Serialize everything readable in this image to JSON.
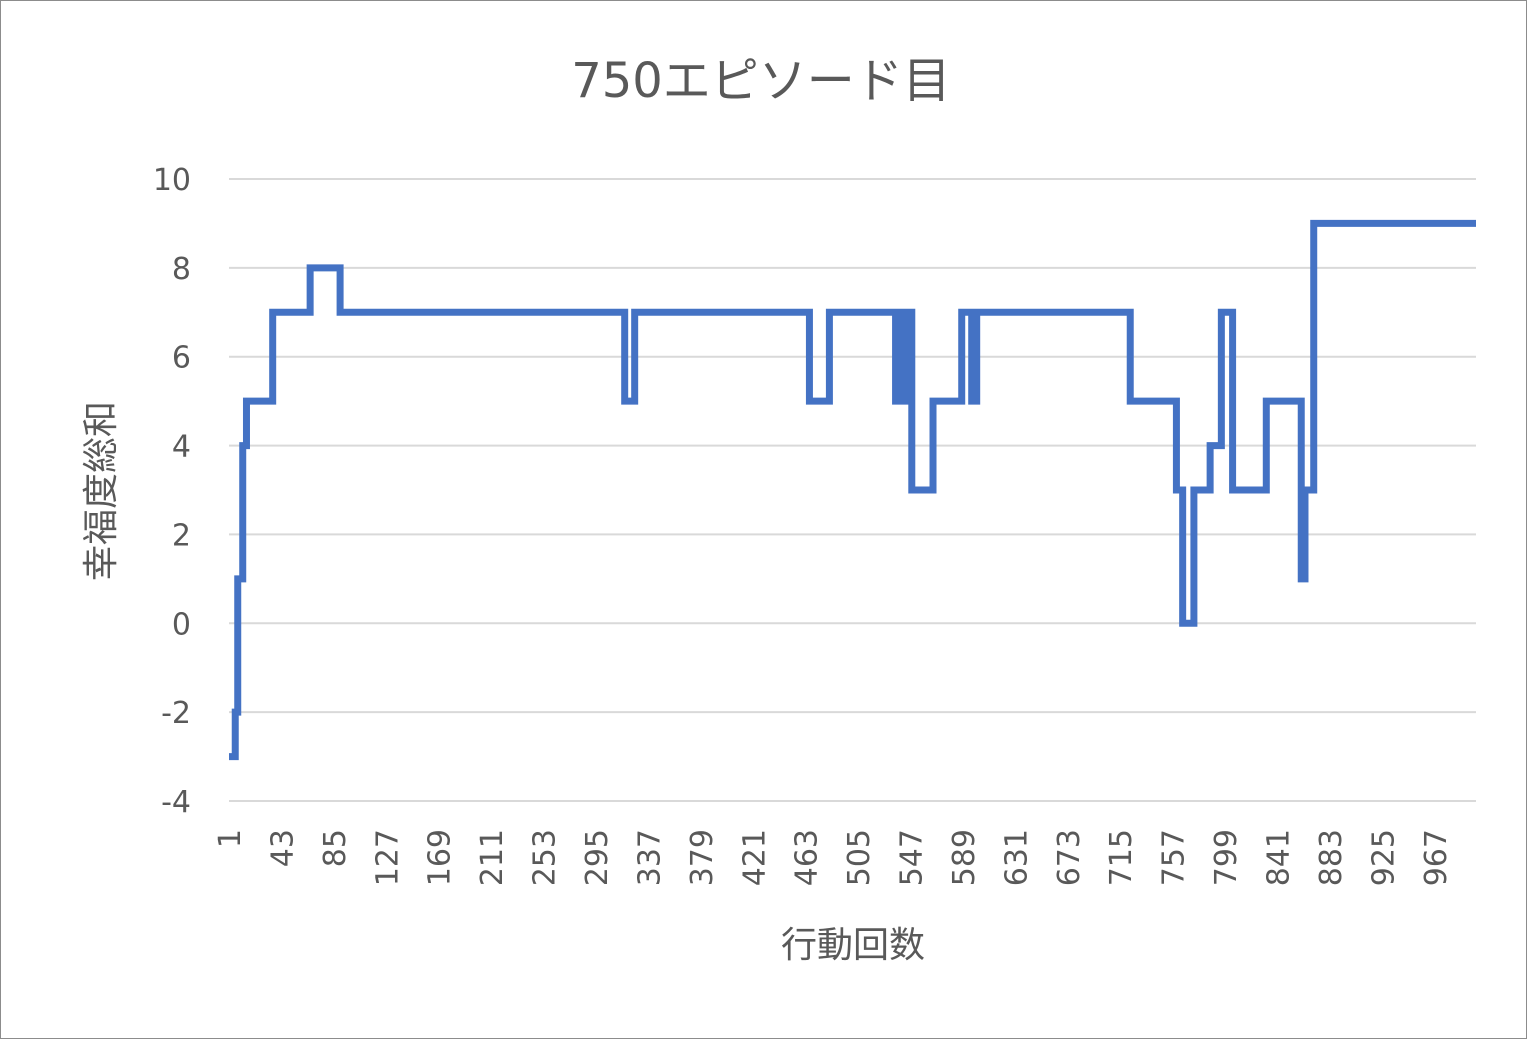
{
  "chart_data": {
    "type": "line",
    "title": "750エピソード目",
    "xlabel": "行動回数",
    "ylabel": "幸福度総和",
    "ylim": [
      -4,
      10
    ],
    "yticks": [
      -4,
      -2,
      0,
      2,
      4,
      6,
      8,
      10
    ],
    "xlim": [
      1,
      1000
    ],
    "xtick_labels": [
      "1",
      "43",
      "85",
      "127",
      "169",
      "211",
      "253",
      "295",
      "337",
      "379",
      "421",
      "463",
      "505",
      "547",
      "589",
      "631",
      "673",
      "715",
      "757",
      "799",
      "841",
      "883",
      "925",
      "967"
    ],
    "grid": true,
    "legend": "none",
    "line_color": "#4472c4",
    "series": [
      {
        "values_step": [
          [
            1,
            -3
          ],
          [
            6,
            -2
          ],
          [
            8,
            1
          ],
          [
            12,
            4
          ],
          [
            15,
            5
          ],
          [
            36,
            7
          ],
          [
            66,
            8
          ],
          [
            90,
            7
          ],
          [
            318,
            5
          ],
          [
            326,
            7
          ],
          [
            466,
            5
          ],
          [
            482,
            7
          ],
          [
            535,
            5
          ],
          [
            538,
            7
          ],
          [
            540,
            5
          ],
          [
            543,
            7
          ],
          [
            548,
            3
          ],
          [
            565,
            5
          ],
          [
            588,
            7
          ],
          [
            596,
            5
          ],
          [
            600,
            7
          ],
          [
            723,
            5
          ],
          [
            760,
            3
          ],
          [
            765,
            0
          ],
          [
            774,
            3
          ],
          [
            787,
            4
          ],
          [
            796,
            7
          ],
          [
            805,
            3
          ],
          [
            832,
            5
          ],
          [
            860,
            1
          ],
          [
            863,
            3
          ],
          [
            870,
            9
          ],
          [
            1000,
            9
          ]
        ]
      }
    ]
  }
}
